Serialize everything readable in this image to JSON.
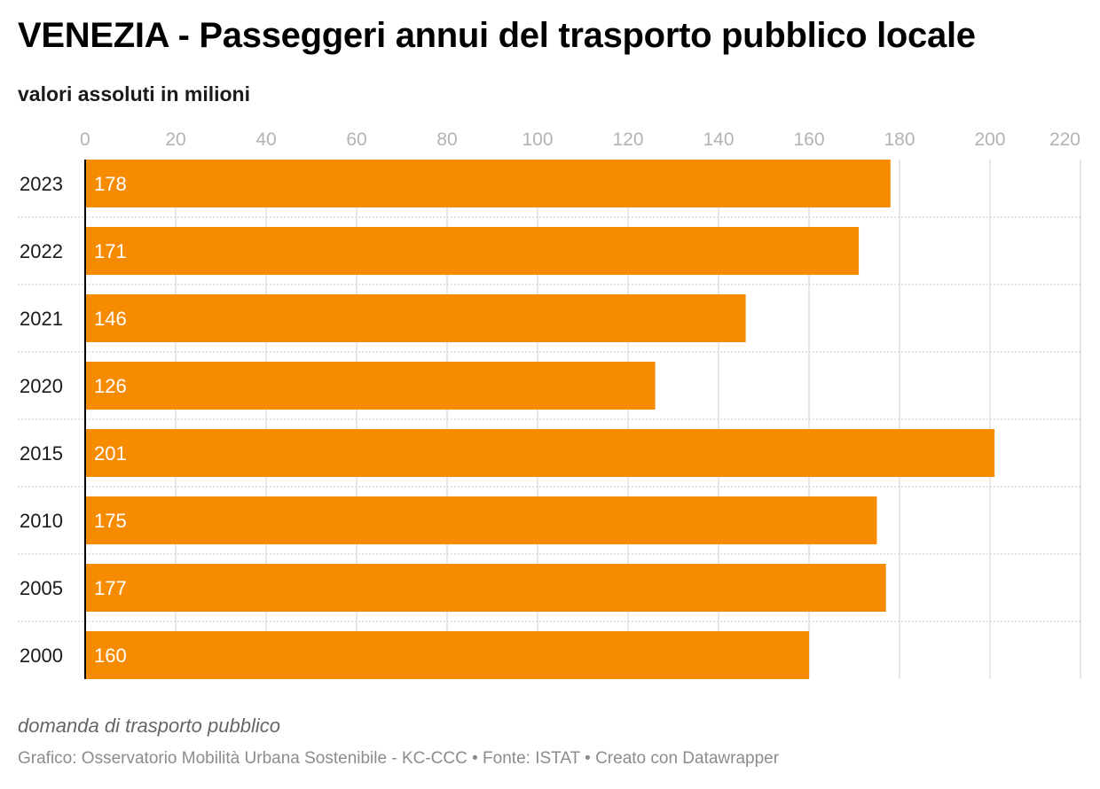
{
  "title": "VENEZIA - Passeggeri annui del trasporto pubblico locale",
  "subtitle": "valori assoluti in milioni",
  "note": "domanda di trasporto pubblico",
  "footer": "Grafico: Osservatorio Mobilità Urbana Sostenibile - KC-CCC • Fonte: ISTAT • Creato con Datawrapper",
  "colors": {
    "bar": "#f68b00",
    "gridline": "#e0e0e0",
    "row_separator": "#c8c8c8",
    "axis": "#000000"
  },
  "chart_data": {
    "type": "bar",
    "orientation": "horizontal",
    "categories": [
      "2023",
      "2022",
      "2021",
      "2020",
      "2015",
      "2010",
      "2005",
      "2000"
    ],
    "values": [
      178,
      171,
      146,
      126,
      201,
      175,
      177,
      160
    ],
    "xlim": [
      0,
      220
    ],
    "xticks": [
      0,
      20,
      40,
      60,
      80,
      100,
      120,
      140,
      160,
      180,
      200,
      220
    ],
    "tick_position": "top",
    "grid": true,
    "value_labels": "inside-start"
  }
}
